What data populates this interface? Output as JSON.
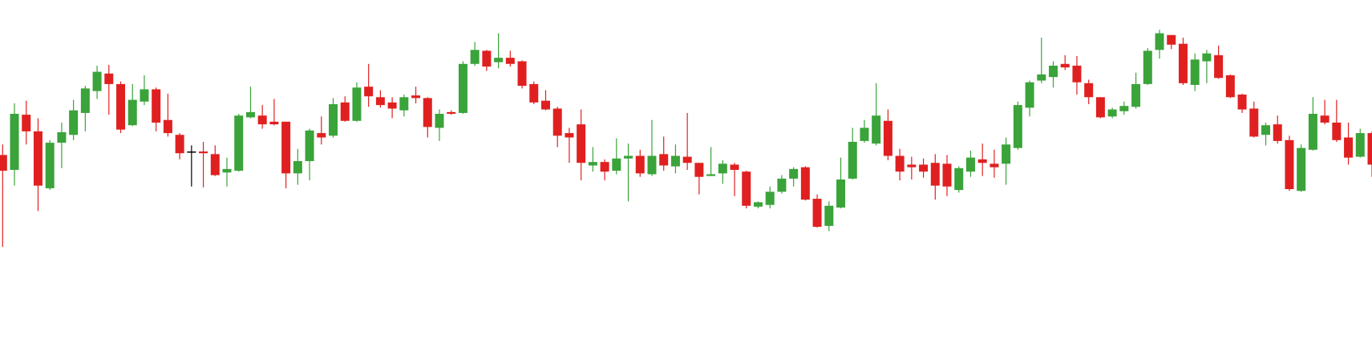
{
  "chart_data": {
    "type": "candlestick",
    "up_color": "#3aa33a",
    "down_color": "#e02020",
    "doji_color": "#000000",
    "ylim": [
      0,
      410
    ],
    "open": [
      233,
      216,
      279,
      260,
      195,
      247,
      256,
      281,
      306,
      326,
      314,
      267,
      294,
      308,
      273,
      256,
      237,
      237,
      234,
      213,
      215,
      276,
      278,
      271,
      271,
      212,
      226,
      258,
      255,
      293,
      272,
      311,
      299,
      293,
      284,
      301,
      298,
      264,
      282,
      281,
      337,
      352,
      339,
      344,
      340,
      314,
      295,
      286,
      258,
      268,
      221,
      225,
      215,
      229,
      232,
      211,
      234,
      220,
      231,
      224,
      209,
      212,
      222,
      214,
      174,
      176,
      191,
      206,
      219,
      183,
      152,
      173,
      206,
      249,
      246,
      272,
      232,
      222,
      222,
      224,
      223,
      193,
      214,
      228,
      223,
      223,
      241,
      287,
      318,
      322,
      337,
      335,
      315,
      299,
      277,
      283,
      288,
      314,
      353,
      370,
      360,
      313,
      340,
      347,
      324,
      302,
      286,
      256,
      268,
      250,
      192,
      239,
      278,
      270,
      253,
      231,
      258
    ],
    "high": [
      245,
      292,
      295,
      275,
      250,
      270,
      296,
      312,
      335,
      336,
      317,
      314,
      324,
      310,
      303,
      258,
      244,
      248,
      244,
      230,
      280,
      311,
      290,
      297,
      271,
      240,
      263,
      277,
      298,
      300,
      316,
      337,
      307,
      299,
      302,
      311,
      299,
      285,
      284,
      340,
      362,
      353,
      372,
      352,
      341,
      317,
      307,
      288,
      264,
      285,
      242,
      228,
      252,
      246,
      239,
      273,
      254,
      245,
      281,
      224,
      242,
      227,
      224,
      215,
      180,
      197,
      210,
      219,
      220,
      188,
      180,
      230,
      264,
      273,
      315,
      285,
      240,
      231,
      229,
      234,
      233,
      220,
      238,
      246,
      239,
      253,
      294,
      318,
      367,
      340,
      347,
      346,
      319,
      299,
      287,
      294,
      327,
      355,
      376,
      370,
      367,
      349,
      353,
      358,
      325,
      303,
      294,
      270,
      278,
      255,
      245,
      299,
      296,
      296,
      270,
      263,
      260
    ],
    "low": [
      128,
      198,
      245,
      169,
      193,
      218,
      250,
      260,
      297,
      279,
      258,
      266,
      290,
      260,
      254,
      228,
      197,
      196,
      209,
      197,
      214,
      275,
      263,
      267,
      195,
      199,
      204,
      245,
      253,
      271,
      271,
      288,
      287,
      275,
      277,
      292,
      253,
      249,
      279,
      280,
      335,
      329,
      332,
      334,
      309,
      291,
      284,
      242,
      224,
      204,
      214,
      204,
      211,
      180,
      208,
      209,
      215,
      212,
      216,
      188,
      209,
      200,
      186,
      172,
      172,
      172,
      189,
      197,
      181,
      150,
      146,
      172,
      205,
      247,
      244,
      227,
      204,
      205,
      207,
      182,
      186,
      190,
      208,
      209,
      207,
      199,
      239,
      277,
      315,
      310,
      330,
      302,
      291,
      275,
      275,
      279,
      286,
      313,
      343,
      354,
      313,
      306,
      315,
      320,
      298,
      281,
      253,
      244,
      246,
      192,
      191,
      238,
      268,
      248,
      222,
      230,
      208
    ],
    "close": [
      215,
      280,
      260,
      198,
      247,
      259,
      284,
      309,
      328,
      314,
      262,
      296,
      308,
      270,
      258,
      235,
      237,
      235,
      210,
      217,
      278,
      282,
      268,
      268,
      212,
      226,
      261,
      253,
      291,
      272,
      310,
      300,
      290,
      286,
      299,
      298,
      265,
      280,
      280,
      337,
      353,
      334,
      344,
      337,
      312,
      293,
      285,
      255,
      253,
      224,
      225,
      214,
      229,
      232,
      212,
      232,
      221,
      232,
      224,
      208,
      211,
      223,
      216,
      175,
      179,
      191,
      206,
      217,
      182,
      151,
      175,
      205,
      248,
      264,
      278,
      232,
      214,
      219,
      214,
      198,
      197,
      218,
      230,
      224,
      219,
      245,
      290,
      316,
      325,
      335,
      333,
      316,
      299,
      276,
      285,
      289,
      314,
      352,
      372,
      359,
      315,
      342,
      349,
      321,
      299,
      285,
      254,
      267,
      249,
      194,
      241,
      280,
      270,
      250,
      230,
      258,
      222
    ]
  }
}
